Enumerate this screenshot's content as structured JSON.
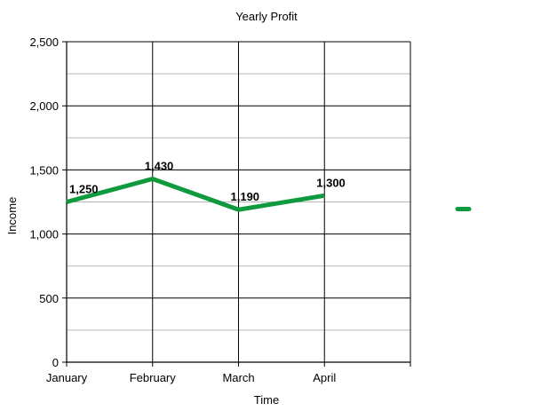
{
  "chart_data": {
    "type": "line",
    "title": "Yearly Profit",
    "xlabel": "Time",
    "ylabel": "Income",
    "categories": [
      "January",
      "February",
      "March",
      "April"
    ],
    "series": [
      {
        "values": [
          1250,
          1430,
          1190,
          1300
        ]
      }
    ],
    "data_labels": [
      "1,250",
      "1,430",
      "1,190",
      "1,300"
    ],
    "ylim": [
      0,
      2500
    ],
    "y_ticks": [
      0,
      500,
      1000,
      1500,
      2000,
      2500
    ],
    "y_tick_labels": [
      "0",
      "500",
      "1,000",
      "1,500",
      "2,000",
      "2,500"
    ],
    "x_slots": 4,
    "grid": true,
    "legend": "right",
    "colors": {
      "series": "#109a3e",
      "major_grid": "#000000",
      "minor_grid": "#b7b7b7"
    }
  }
}
